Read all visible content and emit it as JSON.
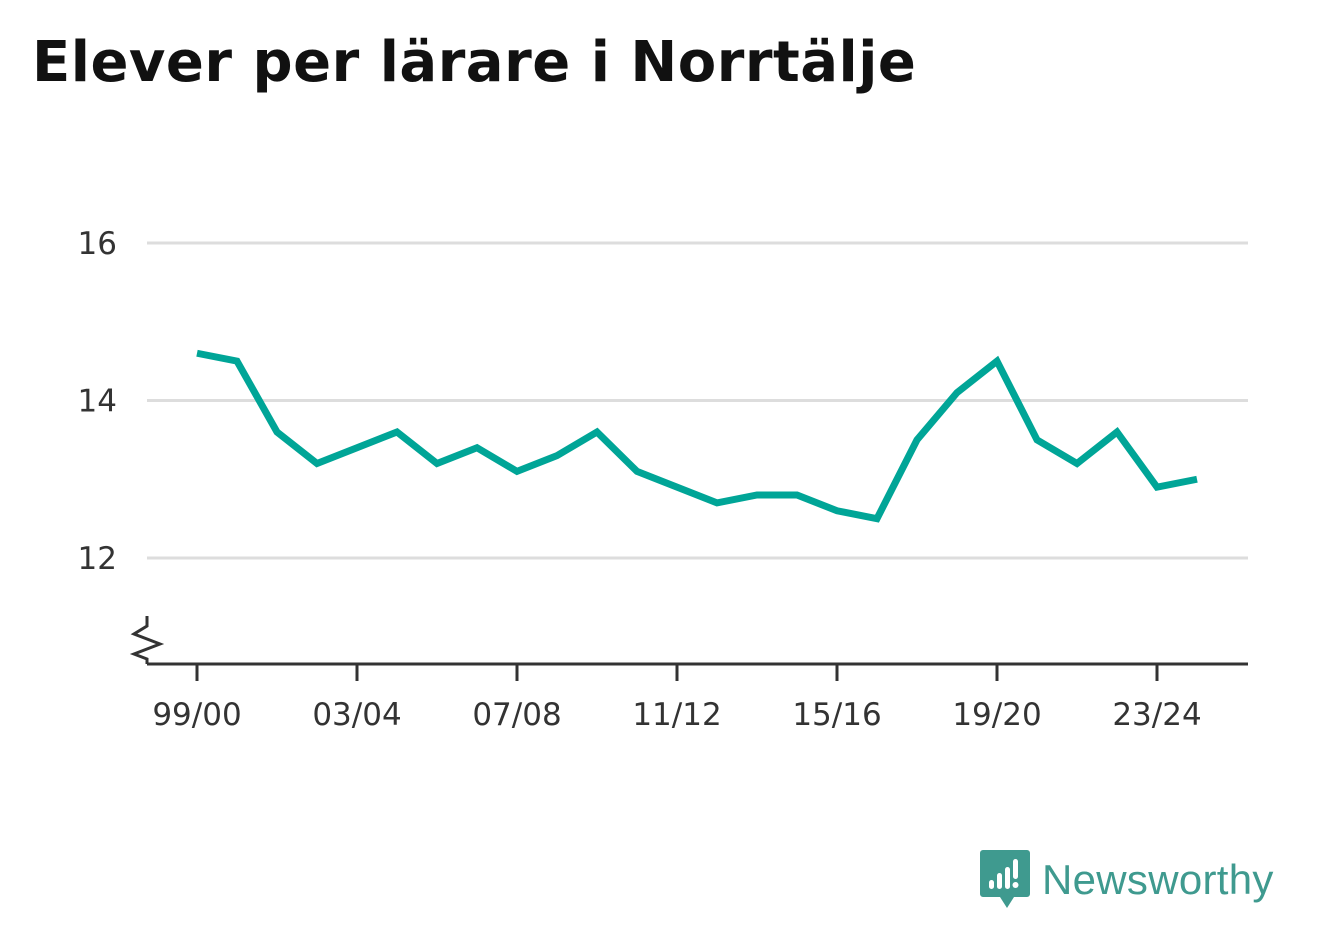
{
  "title": "Elever per lärare i Norrtälje",
  "brand": {
    "name": "Newsworthy",
    "color": "#3f9a8f",
    "icon": "bar-chart-speech-bubble-icon"
  },
  "chart_data": {
    "type": "line",
    "title": "Elever per lärare i Norrtälje",
    "xlabel": "",
    "ylabel": "",
    "categories": [
      "99/00",
      "00/01",
      "01/02",
      "02/03",
      "03/04",
      "04/05",
      "05/06",
      "06/07",
      "07/08",
      "08/09",
      "09/10",
      "10/11",
      "11/12",
      "12/13",
      "13/14",
      "14/15",
      "15/16",
      "16/17",
      "17/18",
      "18/19",
      "19/20",
      "20/21",
      "21/22",
      "22/23",
      "23/24",
      "24/25"
    ],
    "series": [
      {
        "color": "#00a597",
        "values": [
          14.6,
          14.5,
          13.6,
          13.2,
          13.4,
          13.6,
          13.2,
          13.4,
          13.1,
          13.3,
          13.6,
          13.1,
          12.9,
          12.7,
          12.8,
          12.8,
          12.6,
          12.5,
          13.5,
          14.1,
          14.5,
          13.5,
          13.2,
          13.6,
          12.9,
          13.0
        ]
      }
    ],
    "xtick_labels": [
      "99/00",
      "03/04",
      "07/08",
      "11/12",
      "15/16",
      "19/20",
      "23/24"
    ],
    "yticks": [
      12,
      14,
      16
    ],
    "ylim": [
      10.7,
      16
    ],
    "y_axis_break": true,
    "grid": "horizontal",
    "gridline_color": "#dddddd",
    "axis_color": "#333333",
    "legend": "none"
  }
}
